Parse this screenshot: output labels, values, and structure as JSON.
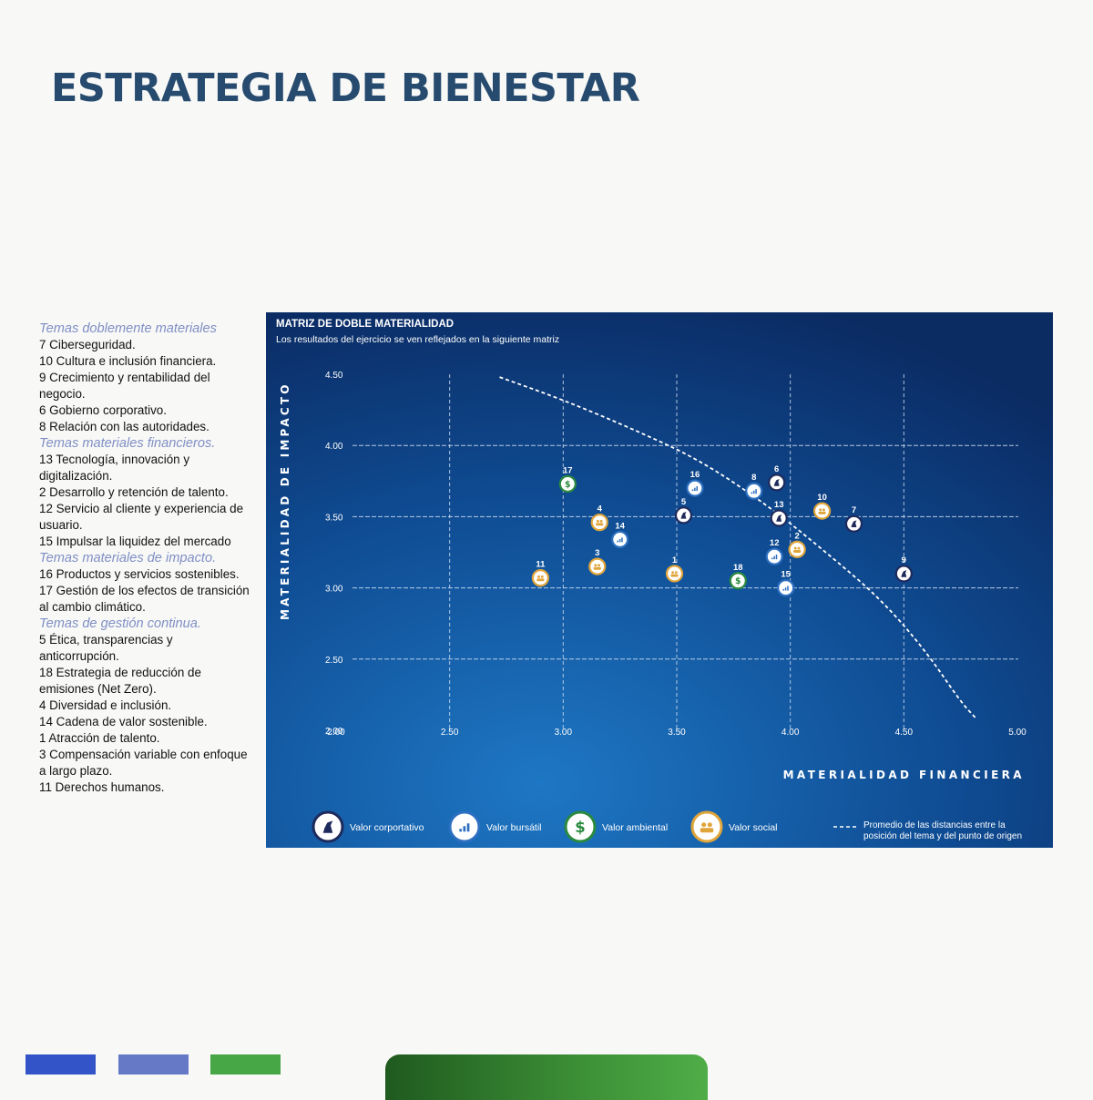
{
  "page": {
    "title": "ESTRATEGIA DE BIENESTAR"
  },
  "topics": [
    {
      "heading": "Temas doblemente materiales",
      "items": [
        "7 Ciberseguridad.",
        "10 Cultura e inclusión financiera.",
        "9 Crecimiento y rentabilidad del negocio.",
        "6 Gobierno corporativo.",
        "8 Relación con las autoridades."
      ]
    },
    {
      "heading": "Temas materiales financieros.",
      "items": [
        "13 Tecnología, innovación y digitalización.",
        "2 Desarrollo y retención de talento.",
        "12 Servicio al cliente y experiencia de usuario.",
        "15 Impulsar la liquidez del mercado"
      ]
    },
    {
      "heading": "Temas materiales de impacto.",
      "items": [
        "16 Productos y servicios sostenibles.",
        "17 Gestión de los efectos de transición al cambio climático."
      ]
    },
    {
      "heading": "Temas de gestión continua.",
      "items": [
        "5 Ética, transparencias y anticorrupción.",
        "18 Estrategia de reducción de emisiones (Net Zero).",
        "4 Diversidad e inclusión.",
        "14 Cadena de valor sostenible.",
        "1 Atracción de talento.",
        "3 Compensación variable con enfoque a largo plazo.",
        "11 Derechos humanos."
      ]
    }
  ],
  "colors": {
    "corporativo": "#1e2a5c",
    "bursatil": "#2d6fc0",
    "ambiental": "#2a8a3e",
    "social": "#e0a53a",
    "bottom_bar_1": "#3353c8",
    "bottom_bar_2": "#6679c6",
    "bottom_bar_3": "#47a645"
  },
  "chart_data": {
    "type": "scatter",
    "title": "MATRIZ DE DOBLE MATERIALIDAD",
    "subtitle": "Los resultados del ejercicio se ven reflejados en la siguiente matriz",
    "xlabel": "MATERIALIDAD FINANCIERA",
    "ylabel": "MATERIALIDAD DE IMPACTO",
    "xlim": [
      2.0,
      5.0
    ],
    "ylim": [
      2.0,
      4.5
    ],
    "x_ticks": [
      "2.00",
      "2.50",
      "3.00",
      "3.50",
      "4.00",
      "4.50",
      "5.00"
    ],
    "y_ticks": [
      "2.00",
      "2.50",
      "3.00",
      "3.50",
      "4.00",
      "4.50"
    ],
    "grid": "dashed",
    "legend": {
      "position": "bottom",
      "items": [
        {
          "key": "corporativo",
          "icon": "chess-knight-icon",
          "label": "Valor corportativo"
        },
        {
          "key": "bursatil",
          "icon": "bar-chart-icon",
          "label": "Valor bursátil"
        },
        {
          "key": "ambiental",
          "icon": "plant-dollar-icon",
          "label": "Valor ambiental"
        },
        {
          "key": "social",
          "icon": "people-icon",
          "label": "Valor social"
        }
      ],
      "curve_label": "Promedio de las distancias entre la posición del tema y del punto de origen"
    },
    "curve": [
      [
        2.72,
        4.48
      ],
      [
        3.0,
        4.32
      ],
      [
        3.3,
        4.12
      ],
      [
        3.6,
        3.9
      ],
      [
        3.9,
        3.58
      ],
      [
        4.15,
        3.26
      ],
      [
        4.4,
        2.92
      ],
      [
        4.6,
        2.55
      ],
      [
        4.75,
        2.2
      ],
      [
        4.82,
        2.08
      ]
    ],
    "points": [
      {
        "label": "1",
        "x": 3.49,
        "y": 3.1,
        "category": "social"
      },
      {
        "label": "2",
        "x": 4.03,
        "y": 3.27,
        "category": "social"
      },
      {
        "label": "3",
        "x": 3.15,
        "y": 3.15,
        "category": "social"
      },
      {
        "label": "4",
        "x": 3.16,
        "y": 3.46,
        "category": "social"
      },
      {
        "label": "5",
        "x": 3.53,
        "y": 3.51,
        "category": "corporativo"
      },
      {
        "label": "6",
        "x": 3.94,
        "y": 3.74,
        "category": "corporativo"
      },
      {
        "label": "7",
        "x": 4.28,
        "y": 3.45,
        "category": "corporativo"
      },
      {
        "label": "8",
        "x": 3.84,
        "y": 3.68,
        "category": "bursatil"
      },
      {
        "label": "9",
        "x": 4.5,
        "y": 3.1,
        "category": "corporativo"
      },
      {
        "label": "10",
        "x": 4.14,
        "y": 3.54,
        "category": "social"
      },
      {
        "label": "11",
        "x": 2.9,
        "y": 3.07,
        "category": "social"
      },
      {
        "label": "12",
        "x": 3.93,
        "y": 3.22,
        "category": "bursatil"
      },
      {
        "label": "13",
        "x": 3.95,
        "y": 3.49,
        "category": "corporativo"
      },
      {
        "label": "14",
        "x": 3.25,
        "y": 3.34,
        "category": "bursatil"
      },
      {
        "label": "15",
        "x": 3.98,
        "y": 3.0,
        "category": "bursatil"
      },
      {
        "label": "16",
        "x": 3.58,
        "y": 3.7,
        "category": "bursatil"
      },
      {
        "label": "17",
        "x": 3.02,
        "y": 3.73,
        "category": "ambiental"
      },
      {
        "label": "18",
        "x": 3.77,
        "y": 3.05,
        "category": "ambiental"
      }
    ]
  }
}
